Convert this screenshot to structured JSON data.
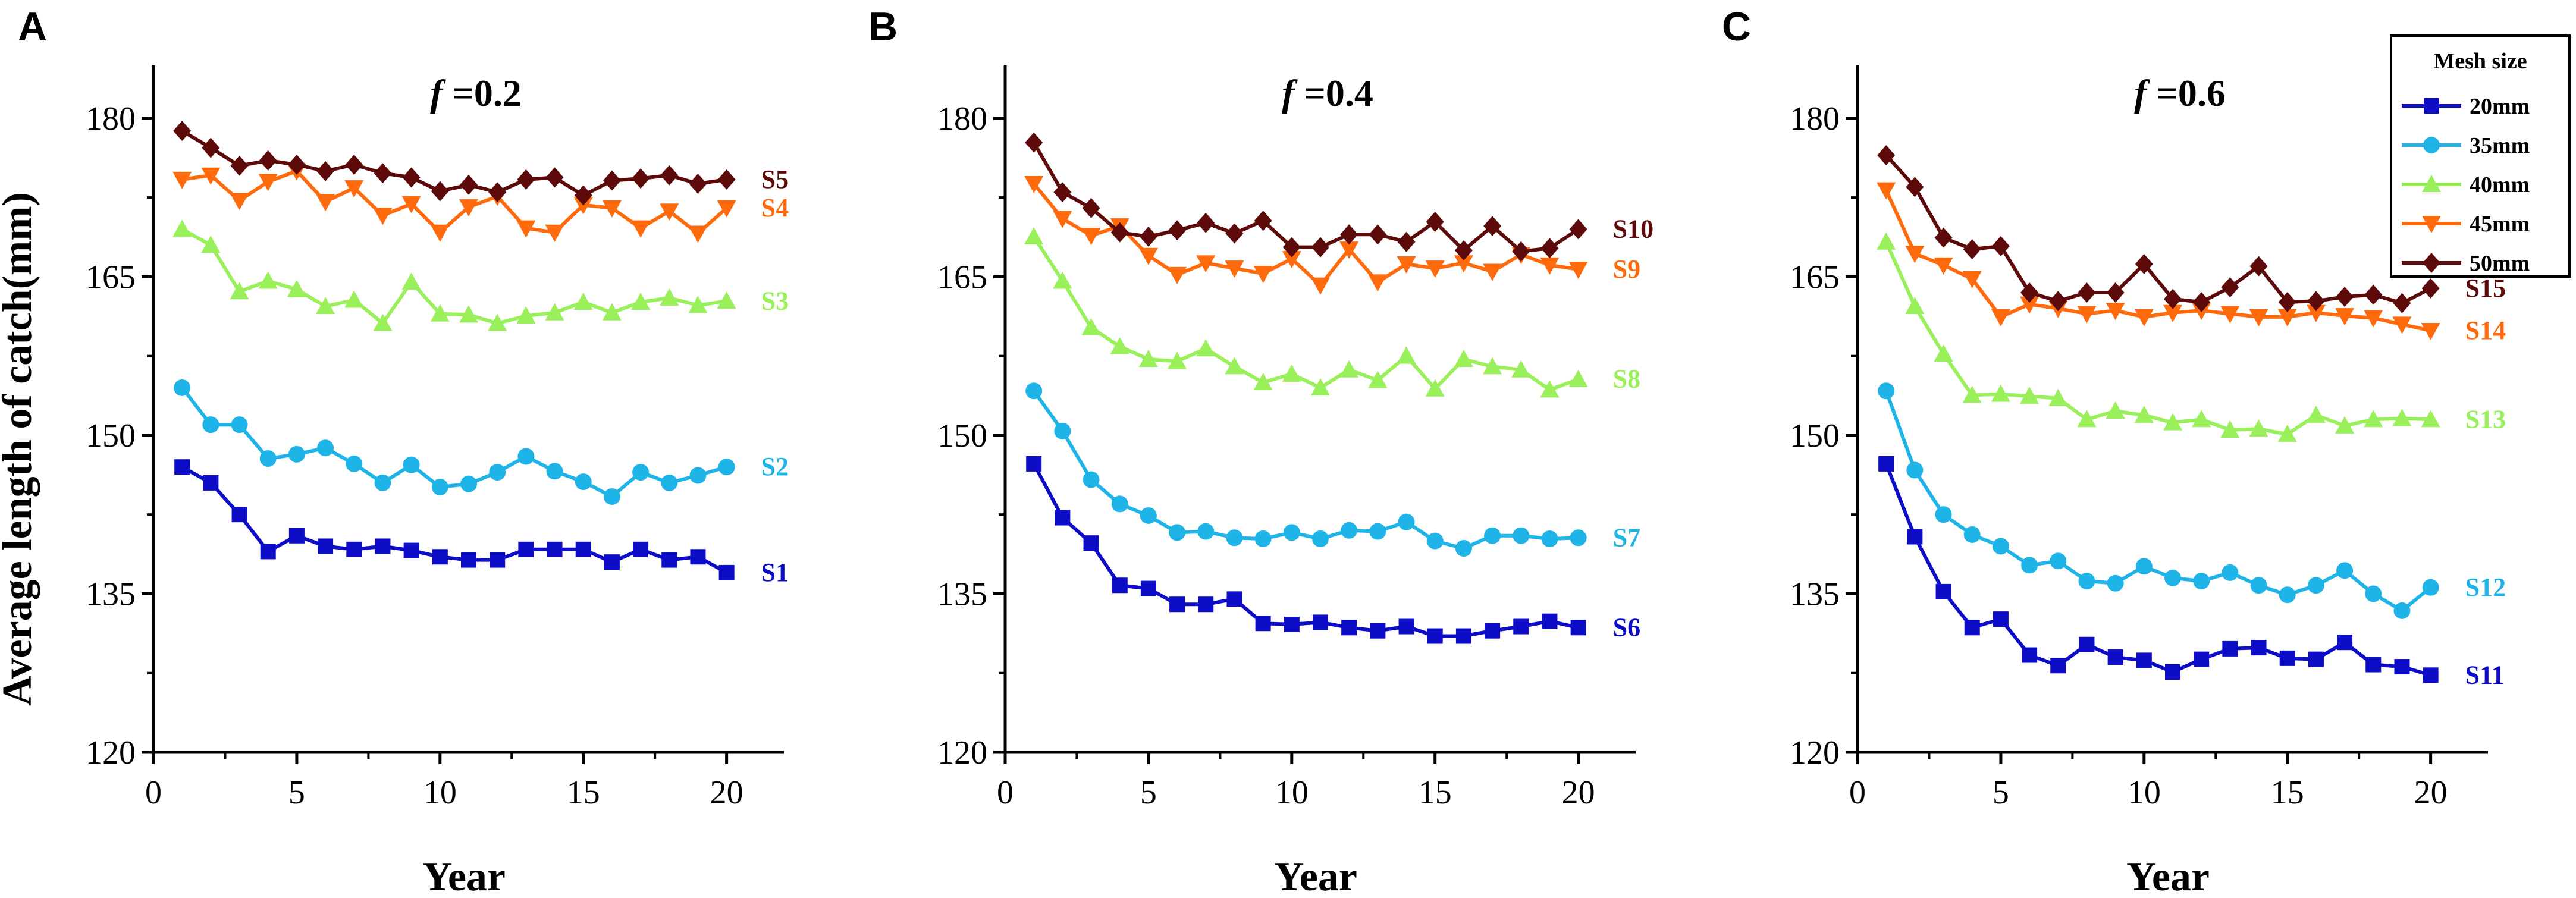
{
  "figure": {
    "ylabel": "Average length of catch(mm)",
    "legend": {
      "title": "Mesh size",
      "entries": [
        {
          "label": "20mm",
          "color": "#0d0dc8",
          "marker": "square"
        },
        {
          "label": "35mm",
          "color": "#1fb4e8",
          "marker": "circle"
        },
        {
          "label": "40mm",
          "color": "#99f05a",
          "marker": "triangle-up"
        },
        {
          "label": "45mm",
          "color": "#ff6a0d",
          "marker": "triangle-down"
        },
        {
          "label": "50mm",
          "color": "#5c0a0a",
          "marker": "diamond"
        }
      ]
    }
  },
  "chart_data": [
    {
      "type": "line",
      "panel": "A",
      "title": "f =0.2",
      "title_italic": "f",
      "title_rest": " =0.2",
      "xlabel": "Year",
      "ylabel": "Average length of catch(mm)",
      "xlim": [
        0,
        22
      ],
      "ylim": [
        120,
        185
      ],
      "xticks": [
        0,
        5,
        10,
        15,
        20
      ],
      "yticks": [
        120,
        135,
        150,
        165,
        180
      ],
      "x": [
        1,
        2,
        3,
        4,
        5,
        6,
        7,
        8,
        9,
        10,
        11,
        12,
        13,
        14,
        15,
        16,
        17,
        18,
        19,
        20
      ],
      "series": [
        {
          "name": "20mm",
          "label": "S1",
          "values": [
            147,
            145.5,
            142.5,
            139,
            140.5,
            139.5,
            139.2,
            139.5,
            139.1,
            138.5,
            138.2,
            138.2,
            139.2,
            139.2,
            139.2,
            138,
            139.2,
            138.2,
            138.5,
            137
          ]
        },
        {
          "name": "35mm",
          "label": "S2",
          "values": [
            154.5,
            151,
            151,
            147.8,
            148.2,
            148.8,
            147.3,
            145.5,
            147.2,
            145.1,
            145.4,
            146.5,
            148,
            146.6,
            145.6,
            144.2,
            146.5,
            145.5,
            146.2,
            147
          ]
        },
        {
          "name": "40mm",
          "label": "S3",
          "values": [
            169.5,
            168,
            163.6,
            164.6,
            163.8,
            162.2,
            162.8,
            160.6,
            164.5,
            161.5,
            161.4,
            160.6,
            161.3,
            161.6,
            162.6,
            161.6,
            162.6,
            163,
            162.3,
            162.7
          ]
        },
        {
          "name": "45mm",
          "label": "S4",
          "values": [
            174.2,
            174.6,
            172.2,
            174,
            175,
            172.1,
            173.4,
            170.8,
            171.9,
            169.2,
            171.6,
            172.6,
            169.6,
            169.2,
            171.8,
            171.5,
            169.6,
            171.2,
            169.1,
            171.5
          ]
        },
        {
          "name": "50mm",
          "label": "S5",
          "values": [
            178.8,
            177.2,
            175.5,
            176,
            175.6,
            175,
            175.6,
            174.8,
            174.4,
            173.1,
            173.7,
            173,
            174.2,
            174.4,
            172.7,
            174.1,
            174.3,
            174.6,
            173.8,
            174.2
          ]
        }
      ]
    },
    {
      "type": "line",
      "panel": "B",
      "title": "f =0.4",
      "title_italic": "f",
      "title_rest": " =0.4",
      "xlabel": "Year",
      "ylabel": "",
      "xlim": [
        0,
        22
      ],
      "ylim": [
        120,
        185
      ],
      "xticks": [
        0,
        5,
        10,
        15,
        20
      ],
      "yticks": [
        120,
        135,
        150,
        165,
        180
      ],
      "x": [
        1,
        2,
        3,
        4,
        5,
        6,
        7,
        8,
        9,
        10,
        11,
        12,
        13,
        14,
        15,
        16,
        17,
        18,
        19,
        20
      ],
      "series": [
        {
          "name": "20mm",
          "label": "S6",
          "values": [
            147.3,
            142.2,
            139.8,
            135.8,
            135.5,
            134,
            134,
            134.5,
            132.2,
            132.1,
            132.3,
            131.8,
            131.5,
            131.9,
            131,
            131,
            131.5,
            131.9,
            132.4,
            131.8
          ]
        },
        {
          "name": "35mm",
          "label": "S7",
          "values": [
            154.2,
            150.4,
            145.8,
            143.5,
            142.4,
            140.8,
            140.9,
            140.3,
            140.2,
            140.8,
            140.2,
            141,
            140.9,
            141.8,
            140,
            139.3,
            140.5,
            140.5,
            140.2,
            140.3
          ]
        },
        {
          "name": "40mm",
          "label": "S8",
          "values": [
            168.8,
            164.6,
            160.2,
            158.4,
            157.2,
            157,
            158.2,
            156.5,
            155,
            155.8,
            154.5,
            156.2,
            155.2,
            157.5,
            154.4,
            157.2,
            156.5,
            156.2,
            154.3,
            155.3
          ]
        },
        {
          "name": "45mm",
          "label": "S9",
          "values": [
            173.8,
            170.5,
            168.9,
            169.8,
            167,
            165.2,
            166.3,
            165.8,
            165.3,
            166.7,
            164.2,
            167.6,
            164.5,
            166.2,
            165.8,
            166.3,
            165.5,
            167.1,
            166.1,
            165.7
          ]
        },
        {
          "name": "50mm",
          "label": "S10",
          "values": [
            177.7,
            173,
            171.5,
            169.2,
            168.8,
            169.4,
            170.1,
            169.1,
            170.3,
            167.8,
            167.8,
            169,
            169,
            168.3,
            170.2,
            167.5,
            169.8,
            167.4,
            167.7,
            169.5
          ]
        }
      ]
    },
    {
      "type": "line",
      "panel": "C",
      "title": "f =0.6",
      "title_italic": "f",
      "title_rest": " =0.6",
      "xlabel": "Year",
      "ylabel": "",
      "xlim": [
        0,
        22
      ],
      "ylim": [
        120,
        185
      ],
      "xticks": [
        0,
        5,
        10,
        15,
        20
      ],
      "yticks": [
        120,
        135,
        150,
        165,
        180
      ],
      "x": [
        1,
        2,
        3,
        4,
        5,
        6,
        7,
        8,
        9,
        10,
        11,
        12,
        13,
        14,
        15,
        16,
        17,
        18,
        19,
        20
      ],
      "series": [
        {
          "name": "20mm",
          "label": "S11",
          "values": [
            147.3,
            140.4,
            135.2,
            131.8,
            132.6,
            129.2,
            128.2,
            130.2,
            129,
            128.7,
            127.6,
            128.8,
            129.8,
            129.9,
            128.9,
            128.8,
            130.4,
            128.3,
            128.1,
            127.3
          ]
        },
        {
          "name": "35mm",
          "label": "S12",
          "values": [
            154.2,
            146.7,
            142.5,
            140.6,
            139.5,
            137.7,
            138.1,
            136.2,
            136,
            137.6,
            136.5,
            136.2,
            137,
            135.8,
            134.9,
            135.8,
            137.2,
            135,
            133.4,
            135.6
          ]
        },
        {
          "name": "40mm",
          "label": "S13",
          "values": [
            168.3,
            162.2,
            157.7,
            153.8,
            153.9,
            153.7,
            153.5,
            151.5,
            152.3,
            151.9,
            151.2,
            151.5,
            150.5,
            150.6,
            150.1,
            151.9,
            150.9,
            151.5,
            151.6,
            151.5
          ]
        },
        {
          "name": "45mm",
          "label": "S14",
          "values": [
            173.2,
            167.2,
            166.1,
            164.8,
            161.2,
            162.4,
            162,
            161.5,
            161.8,
            161.2,
            161.6,
            161.8,
            161.5,
            161.2,
            161.2,
            161.6,
            161.3,
            161.1,
            160.5,
            159.9
          ]
        },
        {
          "name": "50mm",
          "label": "S15",
          "values": [
            176.5,
            173.5,
            168.7,
            167.6,
            167.9,
            163.5,
            162.7,
            163.5,
            163.5,
            166.2,
            162.9,
            162.6,
            164,
            166,
            162.6,
            162.7,
            163.1,
            163.3,
            162.5,
            163.9
          ]
        }
      ]
    }
  ]
}
